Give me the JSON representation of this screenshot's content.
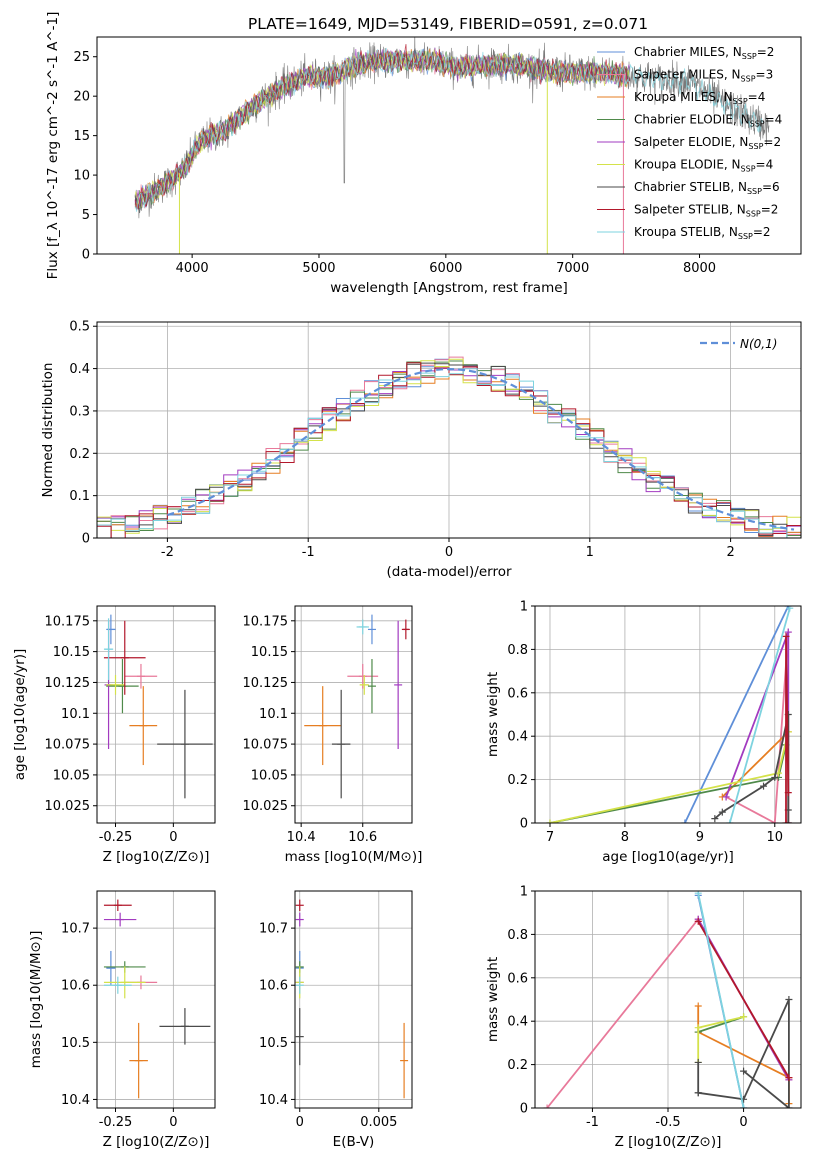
{
  "figure_title": "PLATE=1649, MJD=53149, FIBERID=0591, z=0.071",
  "colors": {
    "Chabrier MILES": "#5f8fd8",
    "Salpeter MILES": "#e8799a",
    "Kroupa MILES": "#e67e22",
    "Chabrier ELODIE": "#4f8a4a",
    "Salpeter ELODIE": "#a23bc0",
    "Kroupa ELODIE": "#d4e24a",
    "Chabrier STELIB": "#4a4a4a",
    "Salpeter STELIB": "#b2182b",
    "Kroupa STELIB": "#7ed3df"
  },
  "models": [
    {
      "name": "Chabrier MILES",
      "nssp": "2"
    },
    {
      "name": "Salpeter MILES",
      "nssp": "3"
    },
    {
      "name": "Kroupa MILES",
      "nssp": "4"
    },
    {
      "name": "Chabrier ELODIE",
      "nssp": "4"
    },
    {
      "name": "Salpeter ELODIE",
      "nssp": "2"
    },
    {
      "name": "Kroupa ELODIE",
      "nssp": "4"
    },
    {
      "name": "Chabrier STELIB",
      "nssp": "6"
    },
    {
      "name": "Salpeter STELIB",
      "nssp": "2"
    },
    {
      "name": "Kroupa STELIB",
      "nssp": "2"
    }
  ],
  "chart_data": [
    {
      "id": "spectrum",
      "type": "line",
      "xlabel": "wavelength [Angstrom, rest frame]",
      "ylabel": "Flux [f_λ 10^-17 erg cm^-2 s^-1 A^-1]",
      "xlim": [
        3250,
        8800
      ],
      "ylim": [
        0,
        27.5
      ],
      "xticks": [
        4000,
        5000,
        6000,
        7000,
        8000
      ],
      "yticks": [
        0,
        5,
        10,
        15,
        20,
        25
      ],
      "continuum": {
        "x": [
          3550,
          3650,
          3750,
          3850,
          3950,
          4050,
          4150,
          4250,
          4350,
          4500,
          4700,
          4900,
          5100,
          5300,
          5500,
          5700,
          5900,
          6100,
          6300,
          6500,
          6700,
          6900,
          7100,
          7300,
          7500,
          7700,
          7900,
          8100,
          8300,
          8550
        ],
        "y": [
          6.5,
          7.5,
          8.5,
          9.5,
          11,
          14,
          15,
          15.5,
          17,
          19,
          21,
          22.5,
          22.5,
          24,
          24.5,
          24.5,
          24.5,
          23.5,
          24,
          24,
          23.5,
          23,
          23,
          23,
          22.5,
          22,
          22,
          20,
          18,
          16
        ]
      },
      "grid": false,
      "legend_position": "top-right"
    },
    {
      "id": "residual_hist",
      "type": "step histogram",
      "xlabel": "(data-model)/error",
      "ylabel": "Normed distribution",
      "xlim": [
        -2.5,
        2.5
      ],
      "ylim": [
        0,
        0.51
      ],
      "xticks": [
        -2,
        -1,
        0,
        1,
        2
      ],
      "yticks": [
        0.0,
        0.1,
        0.2,
        0.3,
        0.4,
        0.5
      ],
      "grid": true,
      "bins": {
        "start": -2.5,
        "width": 0.1,
        "count": 50
      },
      "reference_curve": {
        "label": "N(0,1)",
        "style": "dashed",
        "color": "#5f8fd8"
      },
      "legend_position": "top-right"
    },
    {
      "id": "age_vs_Z",
      "type": "scatter",
      "xlabel": "Z [log10(Z/Z⊙)]",
      "ylabel": "age  [log10(age/yr)]",
      "xlim": [
        -0.33,
        0.18
      ],
      "ylim": [
        10.011,
        10.187
      ],
      "xticks": [
        -0.25,
        0.0
      ],
      "yticks": [
        10.025,
        10.05,
        10.075,
        10.1,
        10.125,
        10.15,
        10.175
      ],
      "grid": true,
      "points": [
        {
          "model": "Chabrier MILES",
          "x": -0.27,
          "xerr": 0.02,
          "y": 10.168,
          "yerr": 0.012
        },
        {
          "model": "Salpeter MILES",
          "x": -0.14,
          "xerr": 0.07,
          "y": 10.13,
          "yerr": 0.01
        },
        {
          "model": "Kroupa MILES",
          "x": -0.13,
          "xerr": 0.06,
          "y": 10.09,
          "yerr": 0.032
        },
        {
          "model": "Chabrier ELODIE",
          "x": -0.22,
          "xerr": 0.07,
          "y": 10.122,
          "yerr": 0.022
        },
        {
          "model": "Salpeter ELODIE",
          "x": -0.28,
          "xerr": 0.01,
          "y": 10.123,
          "yerr": 0.052
        },
        {
          "model": "Kroupa ELODIE",
          "x": -0.25,
          "xerr": 0.04,
          "y": 10.123,
          "yerr": 0.008
        },
        {
          "model": "Chabrier STELIB",
          "x": 0.05,
          "xerr": 0.12,
          "y": 10.075,
          "yerr": 0.044
        },
        {
          "model": "Salpeter STELIB",
          "x": -0.21,
          "xerr": 0.09,
          "y": 10.145,
          "yerr": 0.03
        },
        {
          "model": "Kroupa STELIB",
          "x": -0.28,
          "xerr": 0.02,
          "y": 10.152,
          "yerr": 0.025
        }
      ]
    },
    {
      "id": "age_vs_mass",
      "type": "scatter",
      "xlabel": "mass [log10(M/M⊙)]",
      "ylabel": "",
      "xlim": [
        10.38,
        10.76
      ],
      "ylim": [
        10.011,
        10.187
      ],
      "xticks": [
        10.4,
        10.6
      ],
      "yticks": [
        10.025,
        10.05,
        10.075,
        10.1,
        10.125,
        10.15,
        10.175
      ],
      "grid": true,
      "points": [
        {
          "model": "Chabrier MILES",
          "x": 10.63,
          "y": 10.168,
          "yerr": 0.012
        },
        {
          "model": "Salpeter MILES",
          "x": 10.6,
          "xerr": 0.05,
          "y": 10.13,
          "yerr": 0.01
        },
        {
          "model": "Kroupa MILES",
          "x": 10.47,
          "xerr": 0.06,
          "y": 10.09,
          "yerr": 0.032
        },
        {
          "model": "Chabrier ELODIE",
          "x": 10.63,
          "y": 10.122,
          "yerr": 0.022
        },
        {
          "model": "Salpeter ELODIE",
          "x": 10.715,
          "y": 10.123,
          "yerr": 0.052
        },
        {
          "model": "Kroupa ELODIE",
          "x": 10.605,
          "xerr": 0.015,
          "y": 10.123,
          "yerr": 0.008
        },
        {
          "model": "Chabrier STELIB",
          "x": 10.53,
          "xerr": 0.03,
          "y": 10.075,
          "yerr": 0.044
        },
        {
          "model": "Salpeter STELIB",
          "x": 10.74,
          "xerr": 0.01,
          "y": 10.168,
          "yerr": 0.008
        },
        {
          "model": "Kroupa STELIB",
          "x": 10.6,
          "xerr": 0.02,
          "y": 10.17,
          "yerr": 0.006
        }
      ]
    },
    {
      "id": "mass_weight_vs_age",
      "type": "line",
      "xlabel": "age  [log10(age/yr)]",
      "ylabel": "mass weight",
      "xlim": [
        6.8,
        10.35
      ],
      "ylim": [
        0,
        1
      ],
      "xticks": [
        7,
        8,
        9,
        10
      ],
      "yticks": [
        0.0,
        0.2,
        0.4,
        0.6,
        0.8,
        1.0
      ],
      "grid": true,
      "series": [
        {
          "model": "Chabrier MILES",
          "x": [
            8.8,
            10.18
          ],
          "y": [
            0.0,
            1.0
          ]
        },
        {
          "model": "Salpeter MILES",
          "x": [
            9.35,
            10.0,
            10.18
          ],
          "y": [
            0.12,
            0.0,
            0.88
          ]
        },
        {
          "model": "Kroupa MILES",
          "x": [
            9.3,
            10.18,
            10.18
          ],
          "y": [
            0.12,
            0.42,
            0.0
          ]
        },
        {
          "model": "Chabrier ELODIE",
          "x": [
            7.0,
            10.05,
            10.15
          ],
          "y": [
            0.0,
            0.21,
            0.36
          ]
        },
        {
          "model": "Salpeter ELODIE",
          "x": [
            9.35,
            10.18,
            10.18
          ],
          "y": [
            0.12,
            0.88,
            0.0
          ]
        },
        {
          "model": "Kroupa ELODIE",
          "x": [
            7.0,
            10.05,
            10.18
          ],
          "y": [
            0.0,
            0.23,
            0.42
          ]
        },
        {
          "model": "Chabrier STELIB",
          "x": [
            9.2,
            9.3,
            9.85,
            10.0,
            10.18,
            10.18,
            10.18
          ],
          "y": [
            0.02,
            0.05,
            0.17,
            0.21,
            0.5,
            0.06,
            0.0
          ]
        },
        {
          "model": "Salpeter STELIB",
          "x": [
            10.15,
            10.15,
            10.18
          ],
          "y": [
            0.0,
            0.86,
            0.14
          ]
        },
        {
          "model": "Kroupa STELIB",
          "x": [
            9.4,
            10.2
          ],
          "y": [
            0.0,
            0.99
          ]
        }
      ]
    },
    {
      "id": "mass_vs_Z",
      "type": "scatter",
      "xlabel": "Z [log10(Z/Z⊙)]",
      "ylabel": "mass [log10(M/M⊙)]",
      "xlim": [
        -0.33,
        0.18
      ],
      "ylim": [
        10.385,
        10.765
      ],
      "xticks": [
        -0.25,
        0.0
      ],
      "yticks": [
        10.4,
        10.5,
        10.6,
        10.7
      ],
      "grid": true,
      "points": [
        {
          "model": "Chabrier MILES",
          "x": -0.27,
          "xerr": 0.02,
          "y": 10.63,
          "yerr": 0.03
        },
        {
          "model": "Salpeter MILES",
          "x": -0.14,
          "xerr": 0.07,
          "y": 10.605,
          "yerr": 0.012
        },
        {
          "model": "Kroupa MILES",
          "x": -0.15,
          "xerr": 0.04,
          "y": 10.468,
          "yerr": 0.066
        },
        {
          "model": "Chabrier ELODIE",
          "x": -0.21,
          "xerr": 0.09,
          "y": 10.632,
          "yerr": 0.01
        },
        {
          "model": "Salpeter ELODIE",
          "x": -0.23,
          "xerr": 0.07,
          "y": 10.715,
          "yerr": 0.012
        },
        {
          "model": "Kroupa ELODIE",
          "x": -0.21,
          "xerr": 0.09,
          "y": 10.605,
          "yerr": 0.028
        },
        {
          "model": "Chabrier STELIB",
          "x": 0.05,
          "xerr": 0.11,
          "y": 10.528,
          "yerr": 0.032
        },
        {
          "model": "Salpeter STELIB",
          "x": -0.24,
          "xerr": 0.06,
          "y": 10.74,
          "yerr": 0.01
        },
        {
          "model": "Kroupa STELIB",
          "x": -0.24,
          "xerr": 0.06,
          "y": 10.6,
          "yerr": 0.015
        }
      ]
    },
    {
      "id": "mass_vs_ebv",
      "type": "scatter",
      "xlabel": "E(B-V)",
      "ylabel": "",
      "xlim": [
        -0.0003,
        0.0071
      ],
      "ylim": [
        10.385,
        10.765
      ],
      "xticks": [
        0.0,
        0.005
      ],
      "yticks": [
        10.4,
        10.5,
        10.6,
        10.7
      ],
      "grid": true,
      "points": [
        {
          "model": "Chabrier MILES",
          "x": 0.0,
          "y": 10.63,
          "yerr": 0.03
        },
        {
          "model": "Salpeter MILES",
          "x": 0.0,
          "y": 10.605,
          "yerr": 0.012
        },
        {
          "model": "Kroupa MILES",
          "x": 0.0066,
          "y": 10.468,
          "yerr": 0.066
        },
        {
          "model": "Chabrier ELODIE",
          "x": 0.0,
          "y": 10.632,
          "yerr": 0.01
        },
        {
          "model": "Salpeter ELODIE",
          "x": 0.0,
          "y": 10.715,
          "yerr": 0.012
        },
        {
          "model": "Kroupa ELODIE",
          "x": 0.0,
          "y": 10.605,
          "yerr": 0.028
        },
        {
          "model": "Chabrier STELIB",
          "x": 0.0,
          "y": 10.51,
          "yerr": 0.05
        },
        {
          "model": "Salpeter STELIB",
          "x": 0.0,
          "y": 10.74,
          "yerr": 0.01
        },
        {
          "model": "Kroupa STELIB",
          "x": 0.0,
          "y": 10.6,
          "yerr": 0.015
        }
      ]
    },
    {
      "id": "mass_weight_vs_Z",
      "type": "line",
      "xlabel": "Z [log10(Z/Z⊙)]",
      "ylabel": "mass weight",
      "xlim": [
        -1.38,
        0.38
      ],
      "ylim": [
        0,
        1
      ],
      "xticks": [
        -1.0,
        -0.5,
        0.0
      ],
      "yticks": [
        0.0,
        0.2,
        0.4,
        0.6,
        0.8,
        1.0
      ],
      "grid": true,
      "series": [
        {
          "model": "Chabrier MILES",
          "x": [
            -0.3,
            0.0
          ],
          "y": [
            0.98,
            0.0
          ]
        },
        {
          "model": "Salpeter MILES",
          "x": [
            -1.3,
            -0.3,
            0.3
          ],
          "y": [
            0.0,
            0.87,
            0.13
          ]
        },
        {
          "model": "Kroupa MILES",
          "x": [
            -0.3,
            -0.3,
            0.3,
            0.3
          ],
          "y": [
            0.47,
            0.35,
            0.14,
            0.02
          ]
        },
        {
          "model": "Chabrier ELODIE",
          "x": [
            -0.3,
            0.0
          ],
          "y": [
            0.35,
            0.42
          ]
        },
        {
          "model": "Salpeter ELODIE",
          "x": [
            -0.3,
            0.3
          ],
          "y": [
            0.87,
            0.13
          ]
        },
        {
          "model": "Kroupa ELODIE",
          "x": [
            -0.3,
            -0.3,
            0.0
          ],
          "y": [
            0.21,
            0.37,
            0.42
          ]
        },
        {
          "model": "Chabrier STELIB",
          "x": [
            -0.3,
            -0.3,
            -0.3,
            0.0,
            0.3,
            0.3,
            0.0
          ],
          "y": [
            0.07,
            0.21,
            0.07,
            0.04,
            0.5,
            0.0,
            0.17
          ]
        },
        {
          "model": "Salpeter STELIB",
          "x": [
            -0.3,
            0.3
          ],
          "y": [
            0.86,
            0.14
          ]
        },
        {
          "model": "Kroupa STELIB",
          "x": [
            -0.3,
            0.0
          ],
          "y": [
            0.99,
            0.0
          ]
        }
      ]
    }
  ]
}
